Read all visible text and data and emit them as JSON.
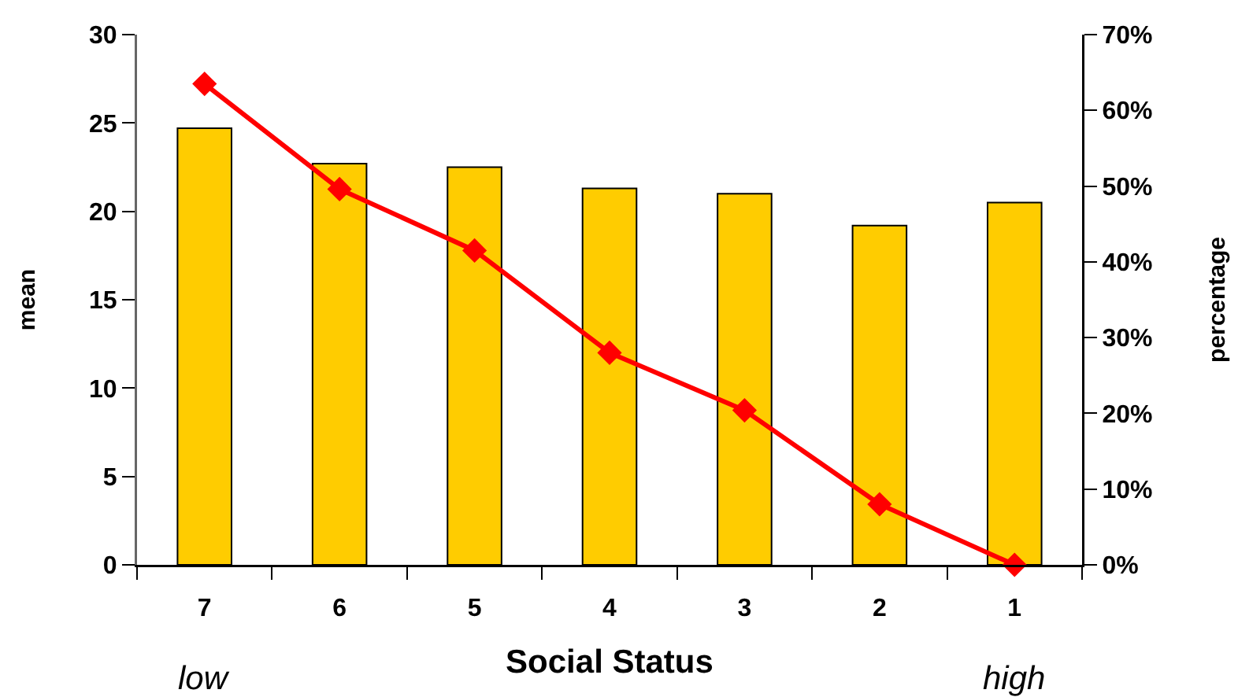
{
  "chart_data": {
    "type": "bar",
    "xlabel": "Social Status",
    "ylabel": "mean",
    "y2label": "percentage",
    "categories": [
      "7",
      "6",
      "5",
      "4",
      "3",
      "2",
      "1"
    ],
    "series": [
      {
        "color": "#ffcc00",
        "values": [
          24.7,
          22.7,
          22.5,
          21.3,
          21.0,
          19.2,
          20.5
        ]
      },
      {
        "type": "line",
        "axis": "y2",
        "color": "#ff0000",
        "marker": "diamond",
        "line_style": "solid",
        "values": [
          63.5,
          49.6,
          41.5,
          28.0,
          20.4,
          8.0,
          0
        ]
      }
    ],
    "ylim": [
      0,
      30
    ],
    "yticks": [
      0,
      5,
      10,
      15,
      20,
      25,
      30
    ],
    "y2lim": [
      0,
      70
    ],
    "y2ticks": [
      {
        "value": 0,
        "label": "0%"
      },
      {
        "value": 10,
        "label": "10%"
      },
      {
        "value": 20,
        "label": "20%"
      },
      {
        "value": 30,
        "label": "30%"
      },
      {
        "value": 40,
        "label": "40%"
      },
      {
        "value": 50,
        "label": "50%"
      },
      {
        "value": 60,
        "label": "60%"
      },
      {
        "value": 70,
        "label": "70%"
      }
    ],
    "annotations": [
      "low",
      "high"
    ]
  }
}
